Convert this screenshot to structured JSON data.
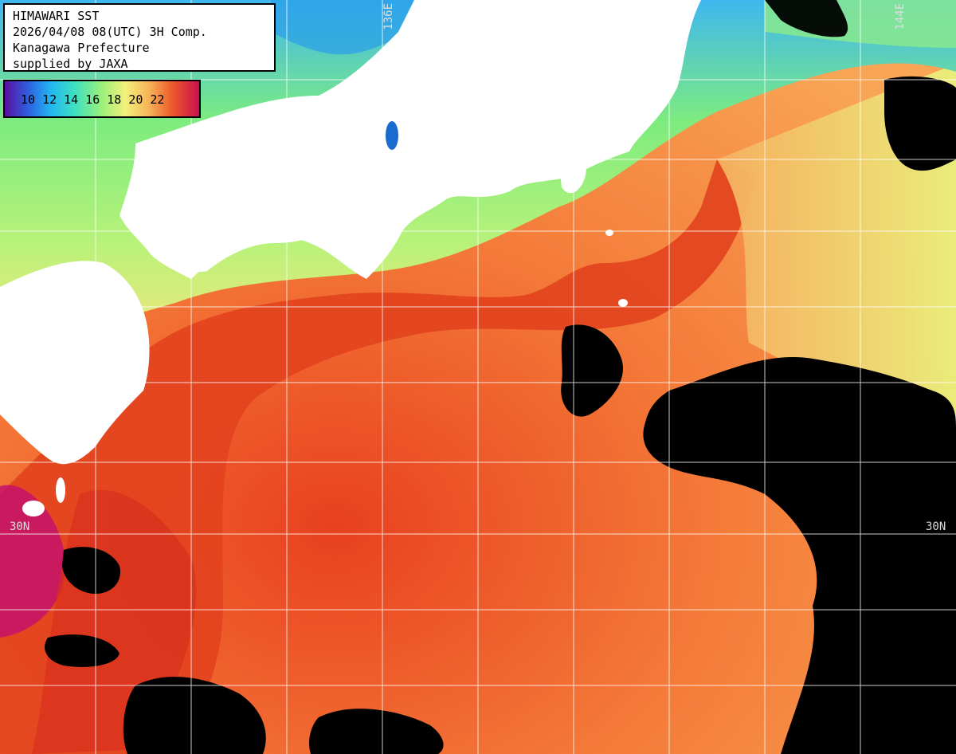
{
  "info": {
    "line1": "HIMAWARI SST",
    "line2": "2026/04/08 08(UTC) 3H Comp.",
    "line3": "Kanagawa Prefecture",
    "line4": "supplied by JAXA"
  },
  "legend": {
    "ticks": [
      "10",
      "12",
      "14",
      "16",
      "18",
      "20",
      "22"
    ]
  },
  "grid_labels": {
    "lon_left": "136E",
    "lon_right": "144E",
    "lat_left": "30N",
    "lat_right": "30N"
  },
  "colors": {
    "land": "#ffffff",
    "cloud_no_data": "#000000",
    "grid": "#ffffff"
  }
}
